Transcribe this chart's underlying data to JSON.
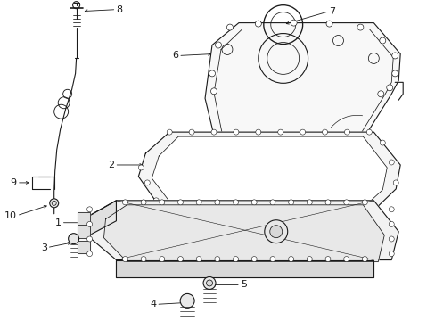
{
  "bg_color": "#ffffff",
  "line_color": "#1a1a1a",
  "figsize": [
    4.89,
    3.6
  ],
  "dpi": 100,
  "lw": 0.8,
  "parts_layout": "technical_diagram"
}
